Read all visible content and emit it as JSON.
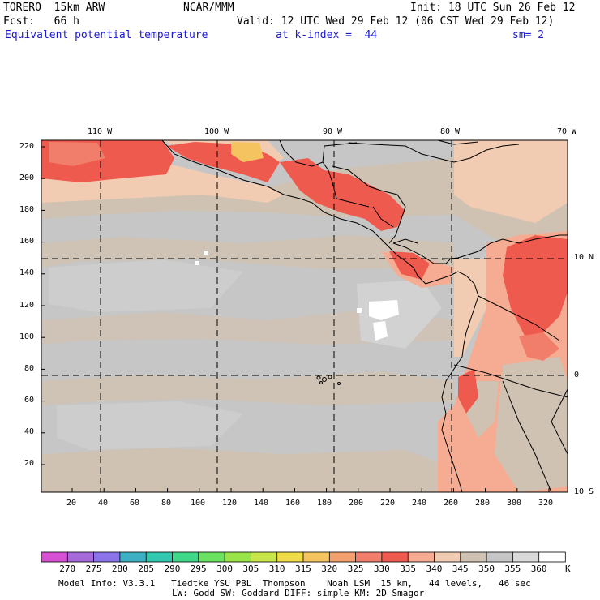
{
  "header": {
    "model": "TORERO  15km ARW",
    "org": "NCAR/MMM",
    "init": "Init: 18 UTC Sun 26 Feb 12",
    "fcst": "Fcst:   66 h",
    "valid": "Valid: 12 UTC Wed 29 Feb 12 (06 CST Wed 29 Feb 12)",
    "field": "Equivalent potential temperature",
    "level": "at k-index =  44",
    "smooth": "sm= 2"
  },
  "map": {
    "top_labels": [
      "110 W",
      "100 W",
      "90 W",
      "80 W",
      "70 W"
    ],
    "right_labels": [
      "10 N",
      "0",
      "10 S"
    ],
    "y_ticks": [
      "220",
      "200",
      "180",
      "160",
      "140",
      "120",
      "100",
      "80",
      "60",
      "40",
      "20"
    ],
    "x_ticks": [
      "20",
      "40",
      "60",
      "80",
      "100",
      "120",
      "140",
      "160",
      "180",
      "200",
      "220",
      "240",
      "260",
      "280",
      "300",
      "320"
    ]
  },
  "colorbar": {
    "labels": [
      "270",
      "275",
      "280",
      "285",
      "290",
      "295",
      "300",
      "305",
      "310",
      "315",
      "320",
      "325",
      "330",
      "335",
      "340",
      "345",
      "350",
      "355",
      "360"
    ],
    "unit": "K",
    "colors": [
      "#d452d2",
      "#a66ad8",
      "#8a74e8",
      "#3fb0c4",
      "#32c8b0",
      "#40d888",
      "#6ce060",
      "#98e34a",
      "#c8e64a",
      "#f0dc48",
      "#f5c460",
      "#f3a070",
      "#f07e6a",
      "#ef5a4e",
      "#f5ac92",
      "#f2ccb2",
      "#cfc2b2",
      "#c6c6c6",
      "#dadada",
      "#ffffff"
    ]
  },
  "footer": {
    "line1": "Model Info: V3.3.1   Tiedtke YSU PBL  Thompson    Noah LSM  15 km,   44 levels,   46 sec",
    "line2": "LW: Godd SW: Goddard DIFF: simple KM: 2D Smagor"
  }
}
